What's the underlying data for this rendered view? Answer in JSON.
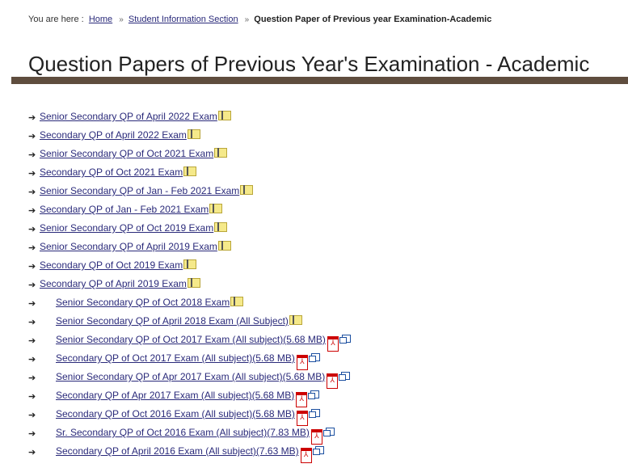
{
  "breadcrumb": {
    "prefix": "You are here :",
    "home": "Home",
    "section": "Student Information Section",
    "current": "Question Paper of Previous year Examination-Academic",
    "separator": "»"
  },
  "title": "Question Papers of Previous Year's Examination - Academic",
  "colors": {
    "link": "#2a2a7a",
    "bar": "#5f4d3e"
  },
  "items": [
    {
      "label": "Senior Secondary QP of April 2022 Exam",
      "icon": "folder",
      "indent": false
    },
    {
      "label": "Secondary QP of April 2022 Exam",
      "icon": "folder",
      "indent": false
    },
    {
      "label": "Senior Secondary QP of Oct 2021 Exam",
      "icon": "folder",
      "indent": false
    },
    {
      "label": "Secondary QP of Oct 2021 Exam",
      "icon": "folder",
      "indent": false
    },
    {
      "label": "Senior Secondary QP of Jan - Feb 2021 Exam",
      "icon": "folder",
      "indent": false
    },
    {
      "label": "Secondary QP of Jan - Feb 2021 Exam",
      "icon": "folder",
      "indent": false
    },
    {
      "label": "Senior Secondary QP of Oct 2019 Exam",
      "icon": "folder",
      "indent": false
    },
    {
      "label": "Senior Secondary QP of April 2019 Exam",
      "icon": "folder",
      "indent": false
    },
    {
      "label": "Secondary QP of Oct 2019 Exam",
      "icon": "folder",
      "indent": false
    },
    {
      "label": "Secondary QP of April 2019 Exam",
      "icon": "folder",
      "indent": false
    },
    {
      "label": "Senior Secondary QP of Oct 2018 Exam",
      "icon": "folder",
      "indent": true
    },
    {
      "label": "Senior Secondary QP of April 2018 Exam (All Subject)",
      "icon": "folder",
      "indent": true
    },
    {
      "label": "Senior Secondary QP of Oct 2017 Exam (All subject)(5.68 MB)",
      "icon": "pdf",
      "indent": true
    },
    {
      "label": "Secondary QP of Oct 2017 Exam (All subject)(5.68 MB)",
      "icon": "pdf",
      "indent": true
    },
    {
      "label": "Senior Secondary QP of Apr 2017 Exam (All subject)(5.68 MB)",
      "icon": "pdf",
      "indent": true
    },
    {
      "label": "Secondary QP of Apr 2017 Exam (All subject)(5.68 MB)",
      "icon": "pdf",
      "indent": true
    },
    {
      "label": "Secondary QP of Oct 2016 Exam (All subject)(5.68 MB)",
      "icon": "pdf",
      "indent": true
    },
    {
      "label": "Sr. Secondary QP of Oct 2016 Exam (All subject)(7.83 MB)",
      "icon": "pdf",
      "indent": true
    },
    {
      "label": "Secondary QP of April 2016 Exam (All subject)(7.63 MB)",
      "icon": "pdf",
      "indent": true
    }
  ]
}
